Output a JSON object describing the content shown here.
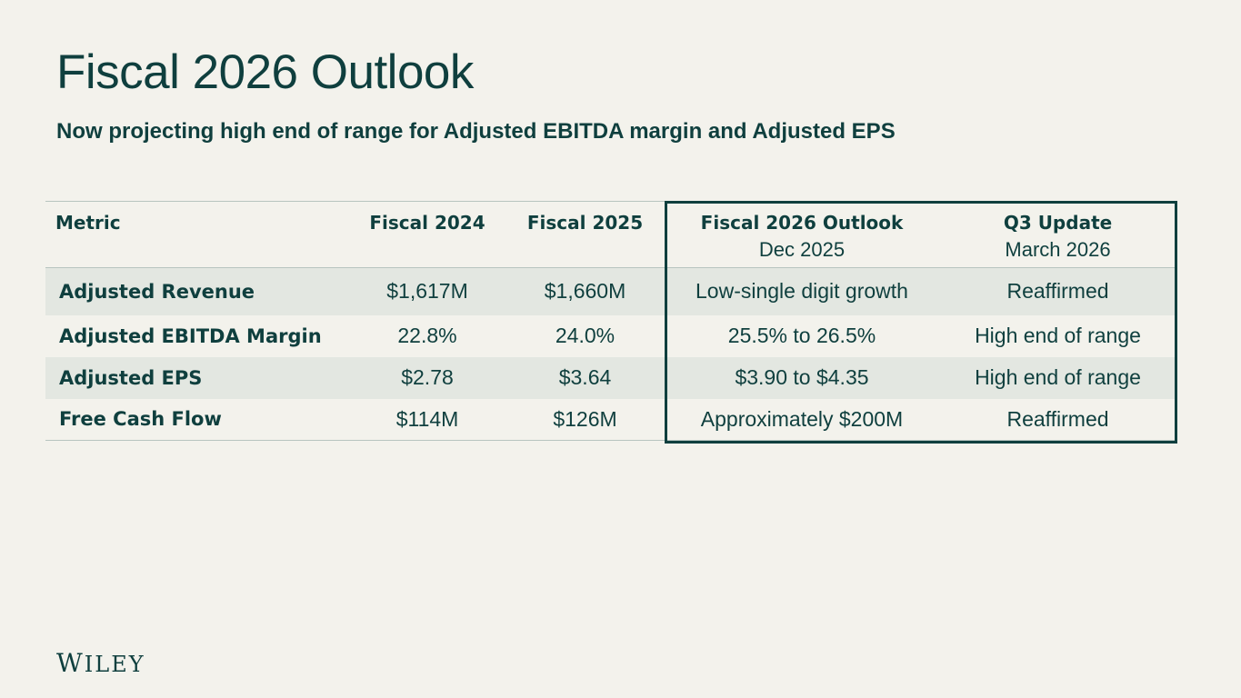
{
  "slide": {
    "title": "Fiscal 2026 Outlook",
    "subtitle": "Now projecting high end of range for Adjusted EBITDA margin and Adjusted EPS",
    "logo_text": "Wiley"
  },
  "table": {
    "headers": {
      "metric": "Metric",
      "fy24": "Fiscal 2024",
      "fy25": "Fiscal 2025",
      "fy26_title": "Fiscal 2026 Outlook",
      "fy26_sub": "Dec 2025",
      "q3_title": "Q3 Update",
      "q3_sub": "March 2026"
    },
    "rows": [
      {
        "metric": "Adjusted Revenue",
        "fy24": "$1,617M",
        "fy25": "$1,660M",
        "fy26": "Low-single digit growth",
        "q3": "Reaffirmed"
      },
      {
        "metric": "Adjusted EBITDA Margin",
        "fy24": "22.8%",
        "fy25": "24.0%",
        "fy26": "25.5% to 26.5%",
        "q3": "High end of range"
      },
      {
        "metric": "Adjusted EPS",
        "fy24": "$2.78",
        "fy25": "$3.64",
        "fy26": "$3.90 to $4.35",
        "q3": "High end of range"
      },
      {
        "metric": "Free Cash Flow",
        "fy24": "$114M",
        "fy25": "$126M",
        "fy26": "Approximately $200M",
        "q3": "Reaffirmed"
      }
    ]
  },
  "colors": {
    "background": "#f3f2ec",
    "text": "#0f3f3e",
    "row_shade": "#e3e7e1",
    "rule": "#b7c4bf"
  }
}
